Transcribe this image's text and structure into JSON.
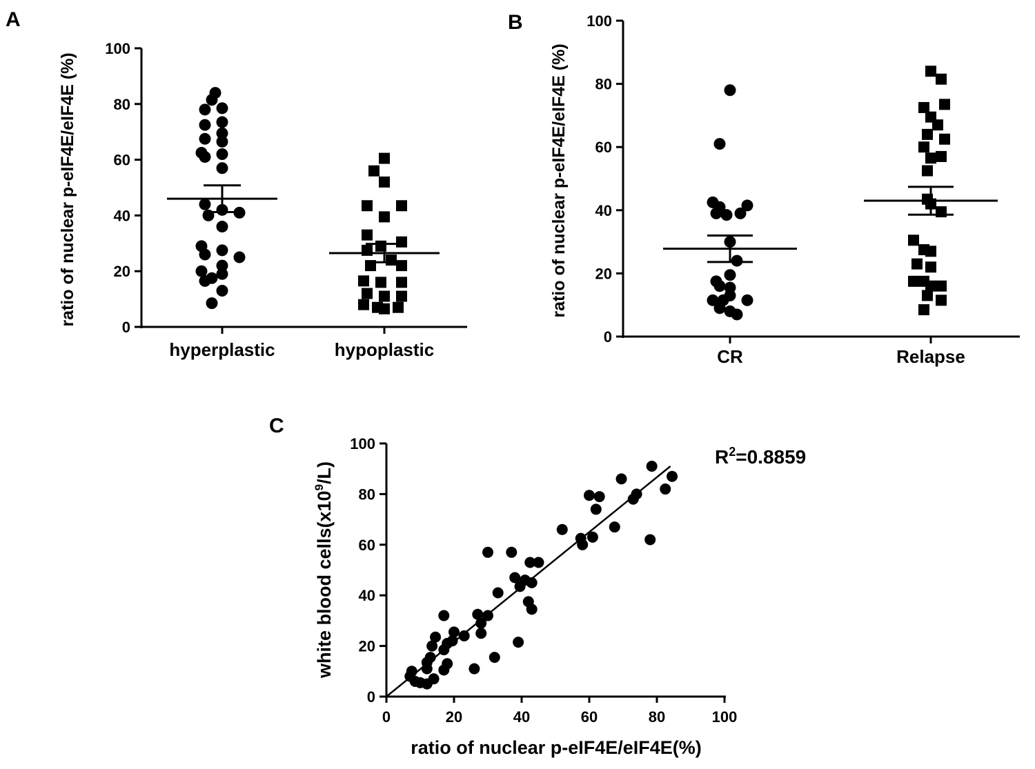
{
  "chart_data": [
    {
      "id": "A",
      "type": "scatter",
      "panel_label": "A",
      "ylabel": "ratio of nuclear p-eIF4E/eIF4E (%)",
      "ylim": [
        0,
        100
      ],
      "yticks": [
        "0",
        "20",
        "40",
        "60",
        "80",
        "100"
      ],
      "groups": [
        {
          "name": "hyperplastic",
          "marker": "circle",
          "mean": 46,
          "sem": 4.8,
          "points": [
            [
              -2,
              84
            ],
            [
              -3,
              81.5
            ],
            [
              0,
              78.5
            ],
            [
              -5,
              78
            ],
            [
              0,
              73.5
            ],
            [
              -5,
              72.5
            ],
            [
              0,
              69.5
            ],
            [
              -5,
              67.5
            ],
            [
              0,
              66.5
            ],
            [
              -6,
              62.5
            ],
            [
              0,
              62
            ],
            [
              -5,
              61
            ],
            [
              0,
              57
            ],
            [
              -5,
              44
            ],
            [
              0,
              42
            ],
            [
              5,
              41
            ],
            [
              -4,
              40
            ],
            [
              0,
              36
            ],
            [
              -6,
              29
            ],
            [
              0,
              27.5
            ],
            [
              -5,
              26
            ],
            [
              5,
              25
            ],
            [
              0,
              22
            ],
            [
              -6,
              20
            ],
            [
              0,
              19
            ],
            [
              -3,
              17.5
            ],
            [
              -5,
              16.5
            ],
            [
              0,
              13
            ],
            [
              -3,
              8.5
            ]
          ]
        },
        {
          "name": "hypoplastic",
          "marker": "square",
          "mean": 26.5,
          "sem": 3.3,
          "points": [
            [
              0,
              60.5
            ],
            [
              -3,
              56
            ],
            [
              0,
              52
            ],
            [
              -5,
              43.5
            ],
            [
              5,
              43.5
            ],
            [
              0,
              39.5
            ],
            [
              -5,
              33
            ],
            [
              5,
              30.5
            ],
            [
              -1,
              29
            ],
            [
              -5,
              27.5
            ],
            [
              2,
              24
            ],
            [
              -4,
              22
            ],
            [
              5,
              22
            ],
            [
              -6,
              16.5
            ],
            [
              -1,
              16
            ],
            [
              5,
              16
            ],
            [
              -5,
              12
            ],
            [
              0,
              11
            ],
            [
              5,
              11
            ],
            [
              -6,
              8
            ],
            [
              -2,
              7
            ],
            [
              4,
              7
            ],
            [
              0,
              6.5
            ]
          ]
        }
      ]
    },
    {
      "id": "B",
      "type": "scatter",
      "panel_label": "B",
      "ylabel": "ratio of nuclear p-eIF4E/eIF4E (%)",
      "ylim": [
        0,
        100
      ],
      "yticks": [
        "0",
        "20",
        "40",
        "60",
        "80",
        "100"
      ],
      "groups": [
        {
          "name": "CR",
          "marker": "circle",
          "mean": 27.8,
          "sem": 4.2,
          "points": [
            [
              0,
              78
            ],
            [
              -3,
              61
            ],
            [
              -5,
              42.5
            ],
            [
              -3,
              41
            ],
            [
              -4,
              39
            ],
            [
              3,
              39
            ],
            [
              5,
              41.5
            ],
            [
              -1,
              38.5
            ],
            [
              0,
              30
            ],
            [
              2,
              24
            ],
            [
              -4,
              17.5
            ],
            [
              0,
              19.5
            ],
            [
              -3,
              16
            ],
            [
              0,
              15.5
            ],
            [
              -5,
              11.5
            ],
            [
              -2,
              11.5
            ],
            [
              5,
              11.5
            ],
            [
              0,
              13
            ],
            [
              -3,
              9
            ],
            [
              0,
              8
            ],
            [
              2,
              7
            ]
          ]
        },
        {
          "name": "Relapse",
          "marker": "square",
          "mean": 43,
          "sem": 4.4,
          "points": [
            [
              0,
              84
            ],
            [
              3,
              81.5
            ],
            [
              -2,
              72.5
            ],
            [
              4,
              73.5
            ],
            [
              0,
              69.5
            ],
            [
              2,
              67
            ],
            [
              -1,
              64
            ],
            [
              4,
              62.5
            ],
            [
              -2,
              60
            ],
            [
              0,
              56.5
            ],
            [
              3,
              57
            ],
            [
              -1,
              52.5
            ],
            [
              -1,
              43.5
            ],
            [
              0,
              42
            ],
            [
              3,
              39.5
            ],
            [
              -5,
              30.5
            ],
            [
              -2,
              27.5
            ],
            [
              0,
              27
            ],
            [
              -4,
              23
            ],
            [
              0,
              22
            ],
            [
              -5,
              17.5
            ],
            [
              -2,
              17.5
            ],
            [
              0,
              16
            ],
            [
              3,
              16
            ],
            [
              -1,
              13
            ],
            [
              3,
              11.5
            ],
            [
              -2,
              8.5
            ]
          ]
        }
      ]
    },
    {
      "id": "C",
      "type": "scatter",
      "panel_label": "C",
      "xlabel": "ratio of nuclear p-eIF4E/eIF4E(%)",
      "ylabel_main": "white blood cells(x10",
      "ylabel_sup": "9",
      "ylabel_end": "/L)",
      "xlim": [
        0,
        100
      ],
      "ylim": [
        0,
        100
      ],
      "xticks": [
        "0",
        "20",
        "40",
        "60",
        "80",
        "100"
      ],
      "yticks": [
        "0",
        "20",
        "40",
        "60",
        "80",
        "100"
      ],
      "annotation": {
        "r2_base": "R",
        "r2_sup": "2",
        "r2_value": "=0.8859"
      },
      "fit_line": {
        "x0": 0,
        "y0": 0,
        "x1": 84,
        "y1": 91
      },
      "points": [
        [
          78.5,
          91
        ],
        [
          84.5,
          87
        ],
        [
          69.5,
          86
        ],
        [
          82.5,
          82
        ],
        [
          74,
          80
        ],
        [
          60,
          79.5
        ],
        [
          63,
          79
        ],
        [
          73,
          78
        ],
        [
          62,
          74
        ],
        [
          67.5,
          67
        ],
        [
          52,
          66
        ],
        [
          57.5,
          62.5
        ],
        [
          61,
          63
        ],
        [
          78,
          62
        ],
        [
          58,
          60
        ],
        [
          30,
          57
        ],
        [
          37,
          57
        ],
        [
          45,
          53
        ],
        [
          42.5,
          53
        ],
        [
          38,
          47
        ],
        [
          41,
          46
        ],
        [
          43,
          45
        ],
        [
          39.5,
          43.5
        ],
        [
          33,
          41
        ],
        [
          42,
          37.5
        ],
        [
          43,
          34.5
        ],
        [
          27,
          32.5
        ],
        [
          17,
          32
        ],
        [
          30,
          32
        ],
        [
          28,
          29
        ],
        [
          28,
          25
        ],
        [
          20,
          25.5
        ],
        [
          23,
          24
        ],
        [
          14.5,
          23.5
        ],
        [
          19.5,
          22
        ],
        [
          18,
          21
        ],
        [
          39,
          21.5
        ],
        [
          13.5,
          20
        ],
        [
          17,
          18.5
        ],
        [
          32,
          15.5
        ],
        [
          13,
          15.5
        ],
        [
          12,
          13.5
        ],
        [
          18,
          13
        ],
        [
          26,
          11
        ],
        [
          17,
          10.5
        ],
        [
          12,
          11
        ],
        [
          7.5,
          10
        ],
        [
          7,
          8
        ],
        [
          8.5,
          6
        ],
        [
          10,
          5.5
        ],
        [
          14,
          7
        ],
        [
          12,
          5
        ]
      ]
    }
  ]
}
